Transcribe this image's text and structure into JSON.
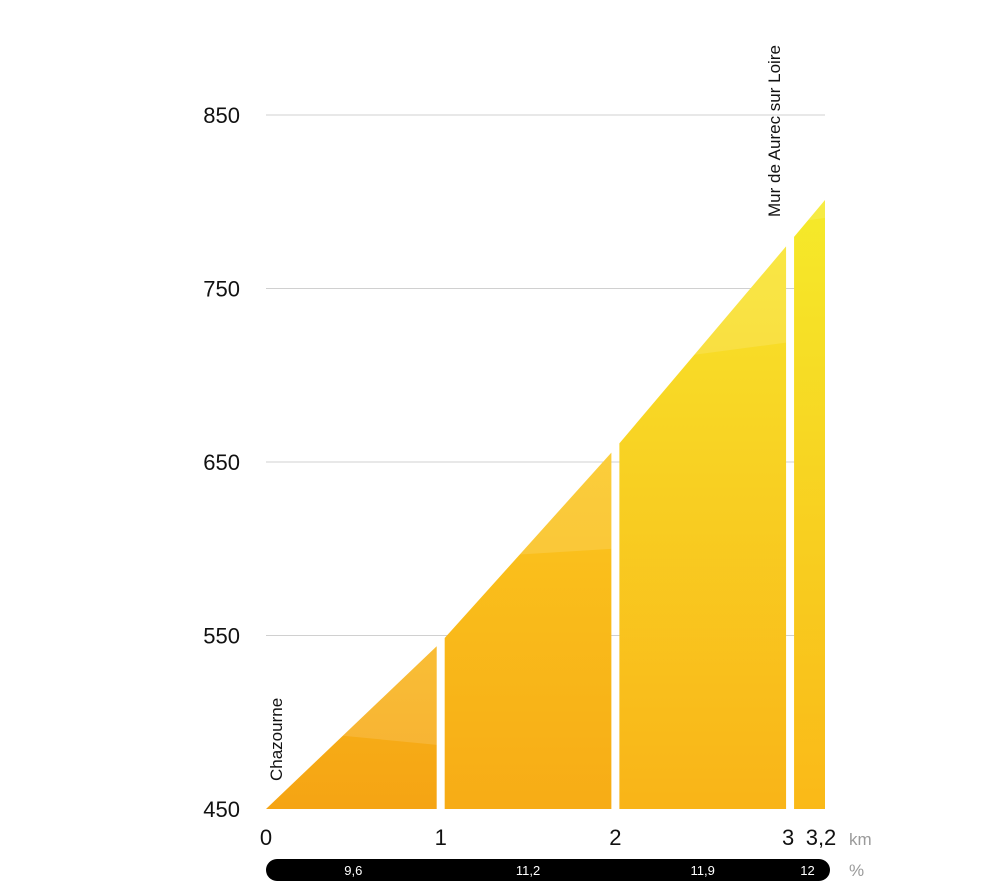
{
  "chart_data": {
    "type": "area",
    "x_unit": "km",
    "grade_unit": "%",
    "ylim": [
      450,
      850
    ],
    "xlim": [
      0,
      3.2
    ],
    "y_ticks": [
      "850",
      "750",
      "650",
      "550",
      "450"
    ],
    "y_tick_values": [
      850,
      750,
      650,
      550,
      450
    ],
    "x_ticks": [
      "0",
      "1",
      "2",
      "3",
      "3,2"
    ],
    "x_tick_values": [
      0,
      1,
      2,
      3,
      3.2
    ],
    "profile": [
      {
        "x": 0,
        "y": 450
      },
      {
        "x": 1,
        "y": 546
      },
      {
        "x": 2,
        "y": 658
      },
      {
        "x": 3,
        "y": 777
      },
      {
        "x": 3.2,
        "y": 801
      }
    ],
    "segments": [
      {
        "from": 0,
        "to": 1,
        "grade": "9,6"
      },
      {
        "from": 1,
        "to": 2,
        "grade": "11,2"
      },
      {
        "from": 2,
        "to": 3,
        "grade": "11,9"
      },
      {
        "from": 3,
        "to": 3.2,
        "grade": "12"
      }
    ],
    "places": [
      {
        "name": "Chazourne",
        "x": 0,
        "y": 450
      },
      {
        "name": "Mur de Aurec sur Loire",
        "x": 3.2,
        "y": 801
      }
    ],
    "colors": {
      "low": "#f5a414",
      "mid": "#fbc318",
      "high": "#f5ea2a",
      "bar": "#000000"
    }
  }
}
